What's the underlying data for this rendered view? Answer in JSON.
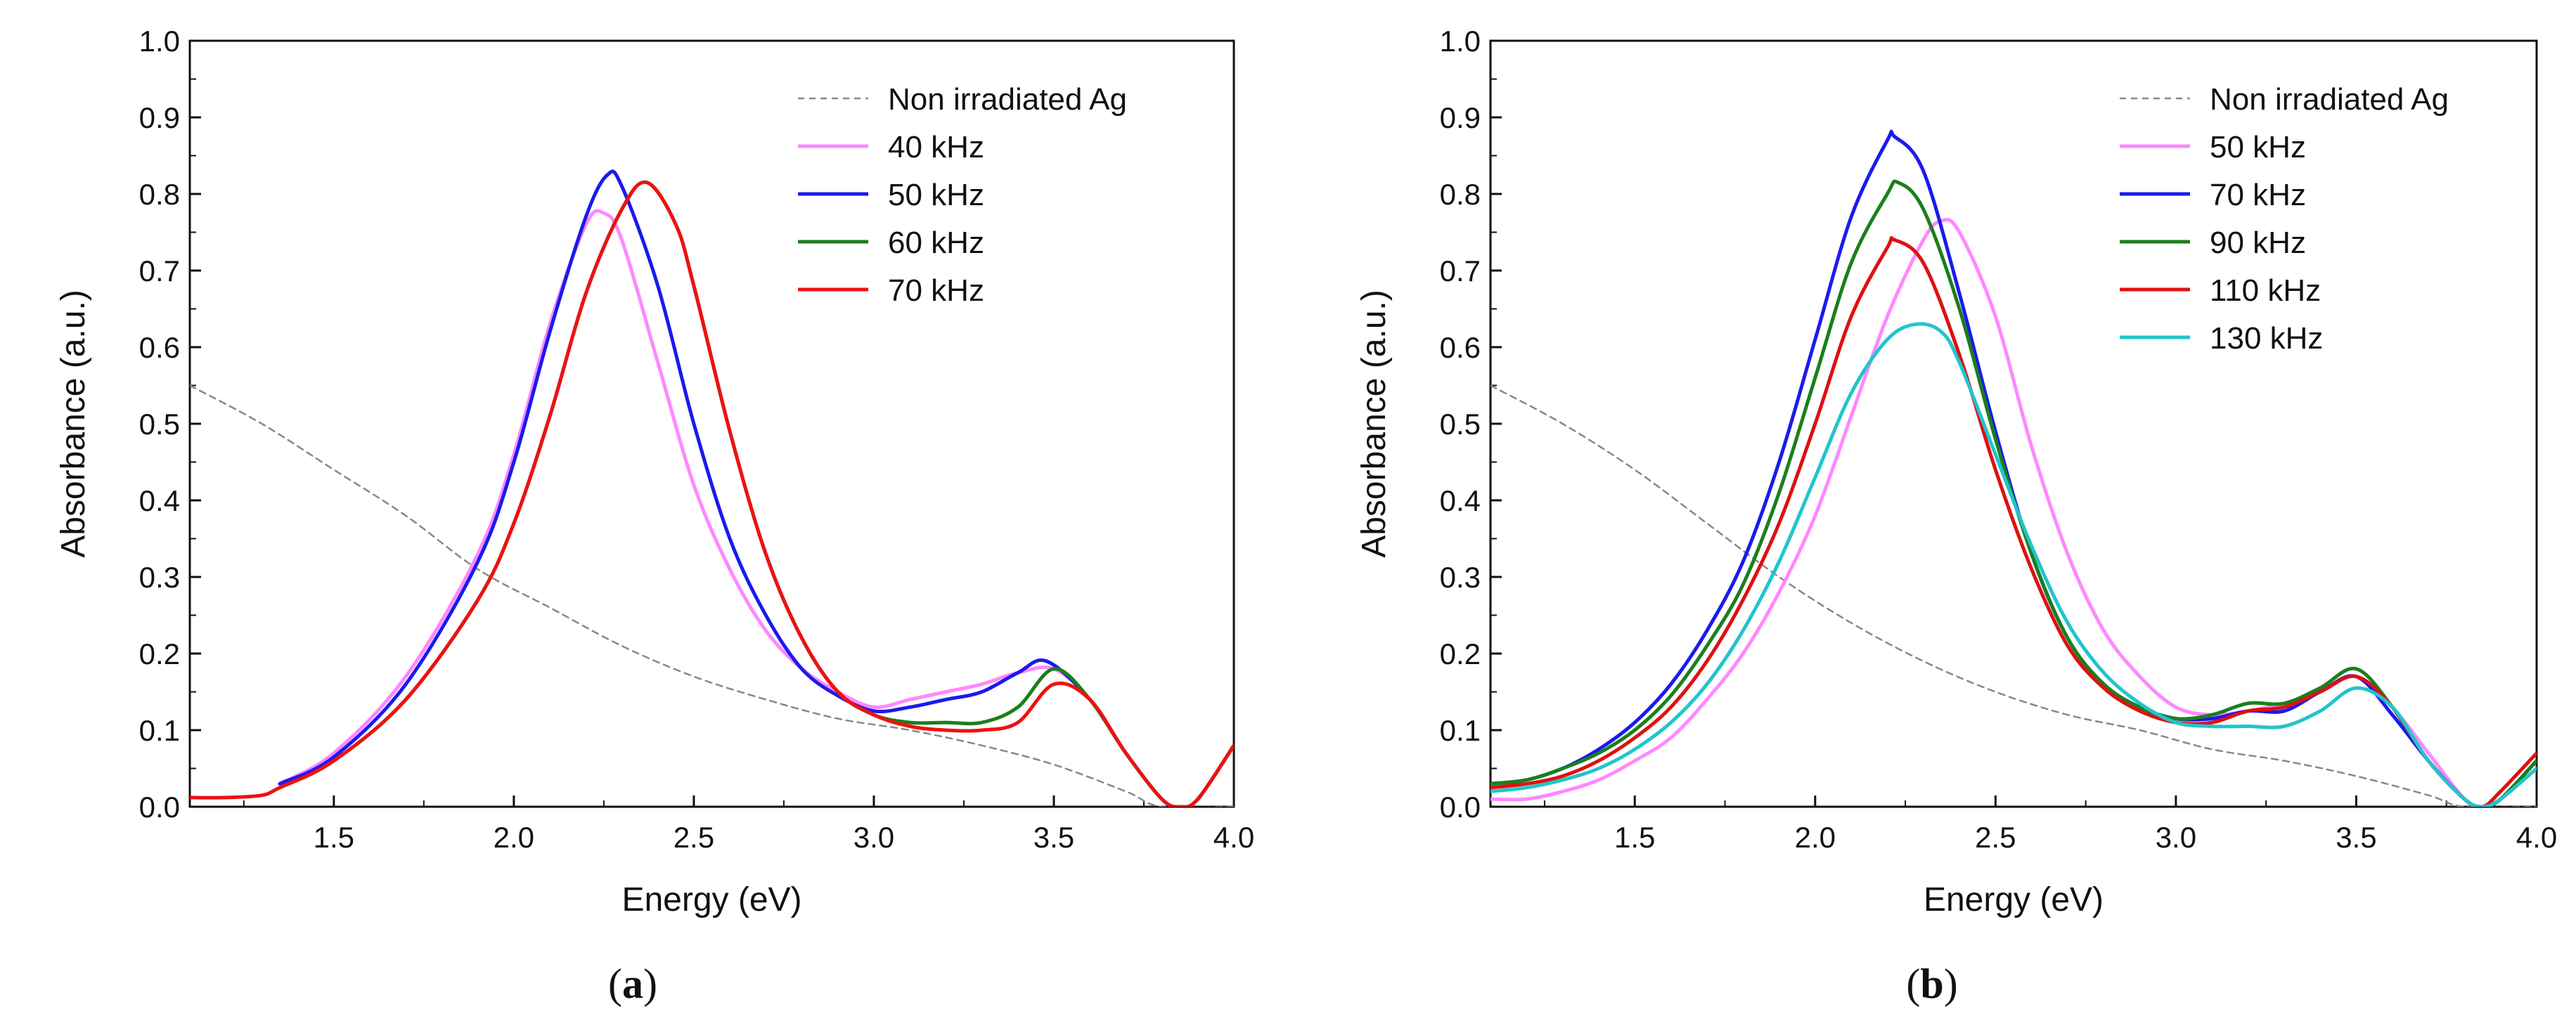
{
  "chart_data": [
    {
      "type": "line",
      "panel_label": "a",
      "xlabel": "Energy (eV)",
      "ylabel": "Absorbance (a.u.)",
      "xlim": [
        1.1,
        4.0
      ],
      "ylim": [
        0.0,
        1.0
      ],
      "xticks": [
        1.5,
        2.0,
        2.5,
        3.0,
        3.5,
        4.0
      ],
      "xtick_labels": [
        "1.5",
        "2.0",
        "2.5",
        "3.0",
        "3.5",
        "4.0"
      ],
      "yticks": [
        0.0,
        0.1,
        0.2,
        0.3,
        0.4,
        0.5,
        0.6,
        0.7,
        0.8,
        0.9,
        1.0
      ],
      "ytick_labels": [
        "0.0",
        "0.1",
        "0.2",
        "0.3",
        "0.4",
        "0.5",
        "0.6",
        "0.7",
        "0.8",
        "0.9",
        "1.0"
      ],
      "grid": false,
      "legend_position": "top-right",
      "series": [
        {
          "name": "Non irradiated Ag",
          "color": "#888888",
          "dashed": true,
          "x": [
            1.1,
            1.3,
            1.5,
            1.7,
            1.9,
            2.1,
            2.3,
            2.5,
            2.7,
            2.9,
            3.1,
            3.3,
            3.5,
            3.7,
            3.8,
            4.0
          ],
          "y": [
            0.55,
            0.5,
            0.44,
            0.38,
            0.31,
            0.26,
            0.21,
            0.17,
            0.14,
            0.115,
            0.1,
            0.08,
            0.055,
            0.02,
            0.0,
            0.0
          ]
        },
        {
          "name": "40 kHz",
          "color": "#ff88ff",
          "dashed": false,
          "x": [
            1.35,
            1.5,
            1.7,
            1.9,
            2.0,
            2.1,
            2.2,
            2.25,
            2.3,
            2.4,
            2.5,
            2.6,
            2.7,
            2.8,
            2.9,
            3.0,
            3.1,
            3.2,
            3.3,
            3.4,
            3.5,
            3.6,
            3.7,
            3.8,
            3.85,
            3.9,
            4.0
          ],
          "y": [
            0.03,
            0.07,
            0.17,
            0.33,
            0.46,
            0.63,
            0.76,
            0.775,
            0.74,
            0.58,
            0.42,
            0.31,
            0.23,
            0.18,
            0.15,
            0.13,
            0.14,
            0.15,
            0.16,
            0.175,
            0.18,
            0.14,
            0.07,
            0.01,
            0.0,
            0.01,
            0.08
          ]
        },
        {
          "name": "50 kHz",
          "color": "#1a1aee",
          "dashed": false,
          "x": [
            1.35,
            1.5,
            1.7,
            1.9,
            2.0,
            2.1,
            2.2,
            2.26,
            2.3,
            2.4,
            2.5,
            2.6,
            2.7,
            2.8,
            2.9,
            3.0,
            3.1,
            3.2,
            3.3,
            3.4,
            3.48,
            3.6,
            3.7,
            3.8,
            3.85,
            3.9,
            4.0
          ],
          "y": [
            0.03,
            0.065,
            0.16,
            0.32,
            0.45,
            0.62,
            0.77,
            0.825,
            0.81,
            0.68,
            0.5,
            0.35,
            0.25,
            0.18,
            0.145,
            0.125,
            0.13,
            0.14,
            0.15,
            0.175,
            0.19,
            0.14,
            0.07,
            0.01,
            0.0,
            0.01,
            0.08
          ]
        },
        {
          "name": "60 kHz",
          "color": "#1b7f1b",
          "dashed": false,
          "x": [
            1.35,
            1.5,
            1.7,
            1.9,
            2.0,
            2.1,
            2.2,
            2.3,
            2.37,
            2.45,
            2.5,
            2.6,
            2.7,
            2.8,
            2.9,
            3.0,
            3.1,
            3.2,
            3.3,
            3.4,
            3.5,
            3.6,
            3.7,
            3.8,
            3.85,
            3.9,
            4.0
          ],
          "y": [
            0.025,
            0.06,
            0.14,
            0.27,
            0.37,
            0.51,
            0.67,
            0.78,
            0.815,
            0.76,
            0.68,
            0.49,
            0.33,
            0.22,
            0.15,
            0.12,
            0.11,
            0.11,
            0.11,
            0.13,
            0.18,
            0.14,
            0.07,
            0.01,
            0.0,
            0.01,
            0.08
          ]
        },
        {
          "name": "70 kHz",
          "color": "#ee1111",
          "dashed": false,
          "x": [
            1.1,
            1.2,
            1.3,
            1.35,
            1.5,
            1.7,
            1.9,
            2.0,
            2.1,
            2.2,
            2.3,
            2.37,
            2.45,
            2.5,
            2.6,
            2.7,
            2.8,
            2.9,
            3.0,
            3.1,
            3.2,
            3.3,
            3.4,
            3.5,
            3.6,
            3.7,
            3.8,
            3.85,
            3.9,
            4.0
          ],
          "y": [
            0.012,
            0.012,
            0.015,
            0.025,
            0.06,
            0.14,
            0.27,
            0.37,
            0.51,
            0.67,
            0.78,
            0.815,
            0.76,
            0.68,
            0.49,
            0.33,
            0.22,
            0.15,
            0.12,
            0.105,
            0.1,
            0.1,
            0.11,
            0.16,
            0.14,
            0.07,
            0.01,
            0.0,
            0.01,
            0.08
          ]
        }
      ]
    },
    {
      "type": "line",
      "panel_label": "b",
      "xlabel": "Energy (eV)",
      "ylabel": "Absorbance (a.u.)",
      "xlim": [
        1.1,
        4.0
      ],
      "ylim": [
        0.0,
        1.0
      ],
      "xticks": [
        1.5,
        2.0,
        2.5,
        3.0,
        3.5,
        4.0
      ],
      "xtick_labels": [
        "1.5",
        "2.0",
        "2.5",
        "3.0",
        "3.5",
        "4.0"
      ],
      "yticks": [
        0.0,
        0.1,
        0.2,
        0.3,
        0.4,
        0.5,
        0.6,
        0.7,
        0.8,
        0.9,
        1.0
      ],
      "ytick_labels": [
        "0.0",
        "0.1",
        "0.2",
        "0.3",
        "0.4",
        "0.5",
        "0.6",
        "0.7",
        "0.8",
        "0.9",
        "1.0"
      ],
      "grid": false,
      "legend_position": "top-right",
      "series": [
        {
          "name": "Non irradiated Ag",
          "color": "#888888",
          "dashed": true,
          "x": [
            1.1,
            1.3,
            1.5,
            1.7,
            1.9,
            2.1,
            2.3,
            2.5,
            2.7,
            2.9,
            3.1,
            3.3,
            3.5,
            3.7,
            3.8,
            4.0
          ],
          "y": [
            0.55,
            0.5,
            0.44,
            0.37,
            0.3,
            0.24,
            0.19,
            0.15,
            0.12,
            0.1,
            0.075,
            0.06,
            0.04,
            0.015,
            0.0,
            0.0
          ]
        },
        {
          "name": "50 kHz",
          "color": "#ff88ff",
          "dashed": false,
          "x": [
            1.1,
            1.2,
            1.3,
            1.4,
            1.5,
            1.6,
            1.7,
            1.8,
            1.9,
            2.0,
            2.1,
            2.2,
            2.3,
            2.35,
            2.4,
            2.5,
            2.6,
            2.7,
            2.8,
            2.9,
            3.0,
            3.1,
            3.2,
            3.3,
            3.4,
            3.5,
            3.6,
            3.7,
            3.8,
            3.85,
            3.9,
            4.0
          ],
          "y": [
            0.01,
            0.01,
            0.02,
            0.035,
            0.06,
            0.09,
            0.14,
            0.2,
            0.28,
            0.38,
            0.51,
            0.64,
            0.74,
            0.765,
            0.75,
            0.64,
            0.47,
            0.33,
            0.23,
            0.17,
            0.13,
            0.12,
            0.125,
            0.135,
            0.15,
            0.17,
            0.13,
            0.07,
            0.01,
            0.0,
            0.01,
            0.05
          ]
        },
        {
          "name": "70 kHz",
          "color": "#1a1aee",
          "dashed": false,
          "x": [
            1.1,
            1.2,
            1.3,
            1.4,
            1.5,
            1.6,
            1.7,
            1.8,
            1.9,
            2.0,
            2.1,
            2.2,
            2.22,
            2.3,
            2.4,
            2.5,
            2.6,
            2.7,
            2.8,
            2.9,
            3.0,
            3.1,
            3.2,
            3.3,
            3.4,
            3.5,
            3.6,
            3.7,
            3.8,
            3.85,
            3.9,
            4.0
          ],
          "y": [
            0.03,
            0.035,
            0.05,
            0.075,
            0.11,
            0.16,
            0.23,
            0.32,
            0.45,
            0.61,
            0.77,
            0.87,
            0.875,
            0.83,
            0.67,
            0.49,
            0.33,
            0.22,
            0.16,
            0.13,
            0.115,
            0.115,
            0.125,
            0.125,
            0.15,
            0.17,
            0.12,
            0.06,
            0.01,
            0.0,
            0.01,
            0.06
          ]
        },
        {
          "name": "90 kHz",
          "color": "#1b7f1b",
          "dashed": false,
          "x": [
            1.1,
            1.2,
            1.3,
            1.4,
            1.5,
            1.6,
            1.7,
            1.8,
            1.9,
            2.0,
            2.1,
            2.2,
            2.23,
            2.3,
            2.4,
            2.5,
            2.6,
            2.7,
            2.8,
            2.9,
            3.0,
            3.1,
            3.2,
            3.3,
            3.4,
            3.5,
            3.6,
            3.7,
            3.8,
            3.85,
            3.9,
            4.0
          ],
          "y": [
            0.03,
            0.035,
            0.05,
            0.07,
            0.1,
            0.145,
            0.21,
            0.29,
            0.41,
            0.56,
            0.71,
            0.8,
            0.815,
            0.78,
            0.65,
            0.48,
            0.33,
            0.22,
            0.16,
            0.13,
            0.115,
            0.12,
            0.135,
            0.135,
            0.155,
            0.18,
            0.13,
            0.06,
            0.01,
            0.0,
            0.01,
            0.06
          ]
        },
        {
          "name": "110 kHz",
          "color": "#dd1111",
          "dashed": false,
          "x": [
            1.1,
            1.2,
            1.3,
            1.4,
            1.5,
            1.6,
            1.7,
            1.8,
            1.9,
            2.0,
            2.1,
            2.2,
            2.22,
            2.3,
            2.4,
            2.5,
            2.6,
            2.7,
            2.8,
            2.9,
            3.0,
            3.1,
            3.2,
            3.3,
            3.4,
            3.5,
            3.6,
            3.7,
            3.8,
            3.85,
            3.9,
            4.0
          ],
          "y": [
            0.025,
            0.03,
            0.04,
            0.06,
            0.09,
            0.13,
            0.19,
            0.27,
            0.37,
            0.5,
            0.64,
            0.73,
            0.74,
            0.71,
            0.59,
            0.44,
            0.31,
            0.21,
            0.155,
            0.125,
            0.11,
            0.11,
            0.125,
            0.13,
            0.15,
            0.17,
            0.13,
            0.06,
            0.01,
            0.0,
            0.02,
            0.07
          ]
        },
        {
          "name": "130 kHz",
          "color": "#22c4cc",
          "dashed": false,
          "x": [
            1.1,
            1.2,
            1.3,
            1.4,
            1.5,
            1.6,
            1.7,
            1.8,
            1.9,
            2.0,
            2.1,
            2.2,
            2.28,
            2.35,
            2.4,
            2.5,
            2.6,
            2.7,
            2.8,
            2.9,
            3.0,
            3.1,
            3.2,
            3.3,
            3.4,
            3.5,
            3.6,
            3.7,
            3.8,
            3.85,
            3.9,
            4.0
          ],
          "y": [
            0.02,
            0.025,
            0.035,
            0.05,
            0.075,
            0.11,
            0.16,
            0.23,
            0.32,
            0.43,
            0.54,
            0.61,
            0.63,
            0.62,
            0.58,
            0.46,
            0.34,
            0.24,
            0.175,
            0.135,
            0.11,
            0.105,
            0.105,
            0.105,
            0.125,
            0.155,
            0.13,
            0.06,
            0.01,
            0.0,
            0.01,
            0.05
          ]
        }
      ]
    }
  ]
}
